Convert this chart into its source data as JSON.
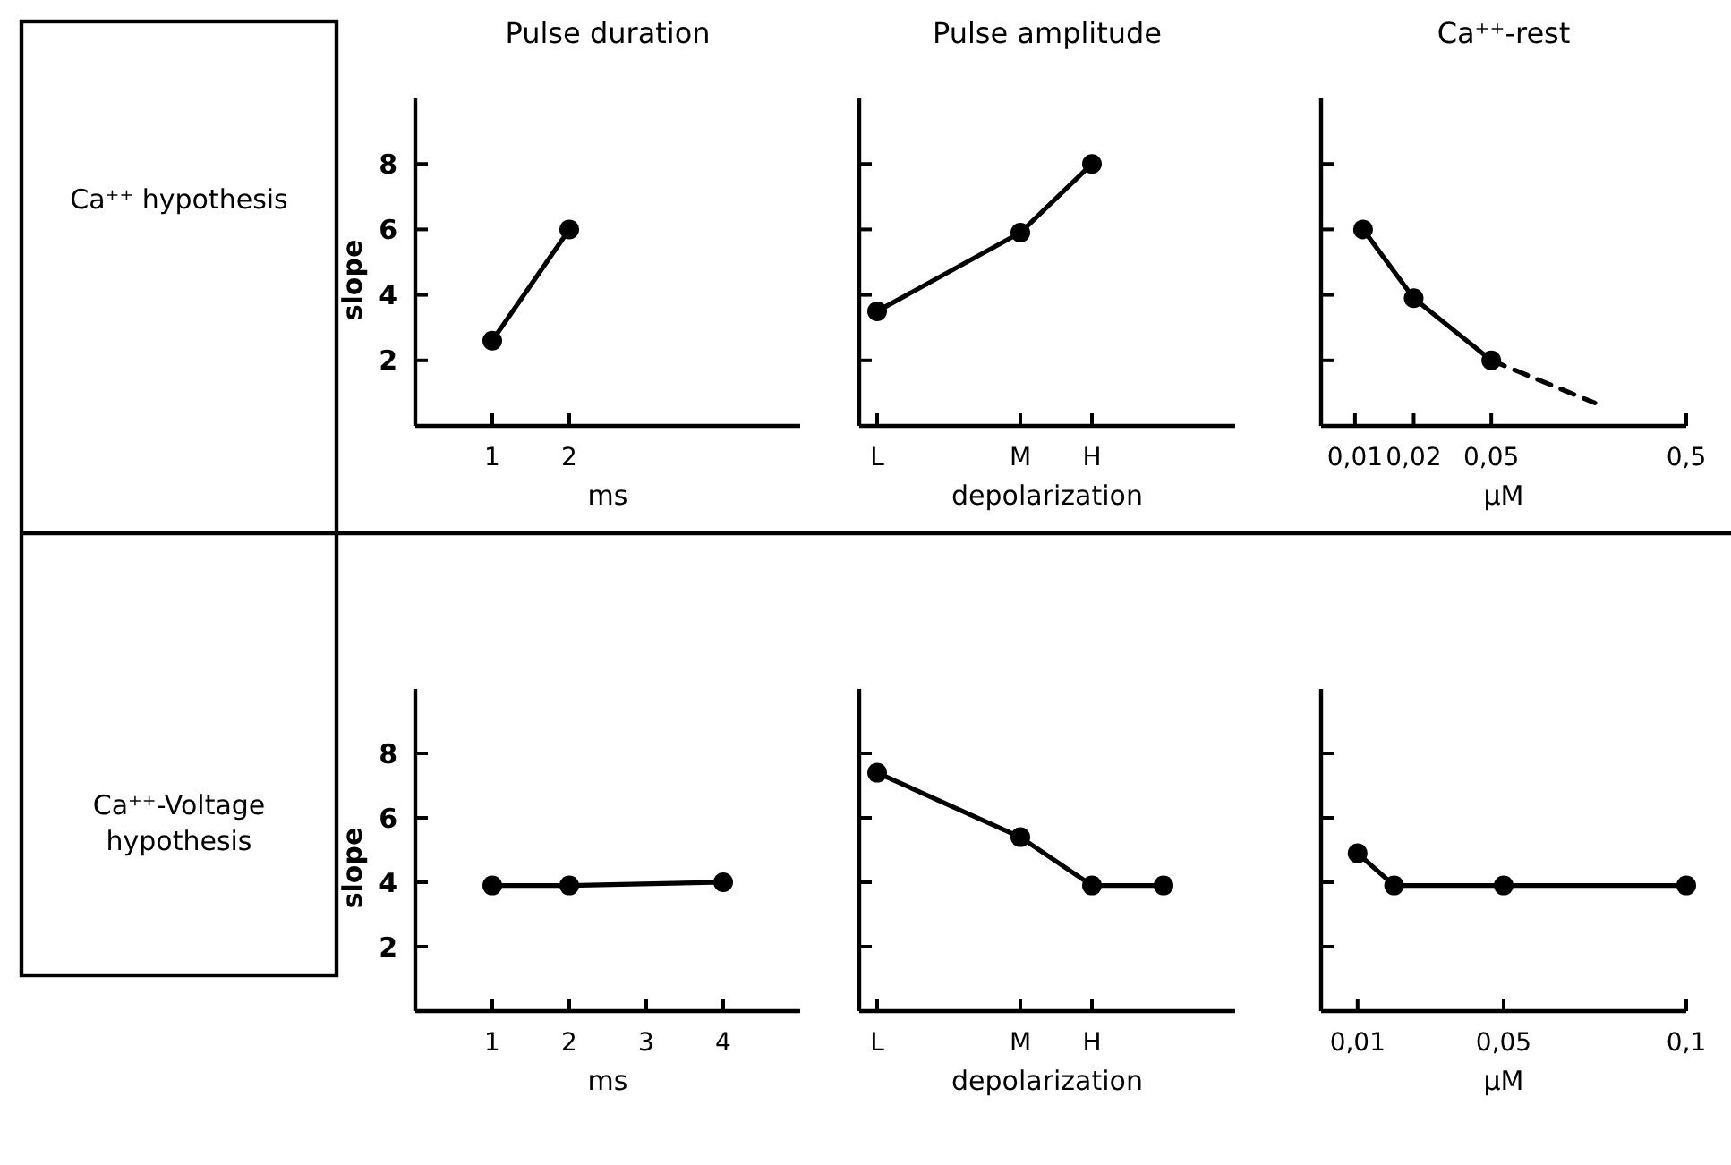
{
  "chart_data": [
    {
      "type": "line",
      "title": "Pulse duration",
      "xlabel": "ms",
      "ylabel": "slope",
      "annotations": [
        "Ca⁺⁺ hypothesis"
      ],
      "xlim": [
        0,
        5
      ],
      "xticks": [
        1,
        2
      ],
      "ylim": [
        0,
        10
      ],
      "yticks": [
        2,
        4,
        6,
        8
      ],
      "marker": "circle",
      "line_style": "solid",
      "x": [
        1,
        2
      ],
      "series": [
        {
          "color": "#000000",
          "values": [
            2.6,
            6.0
          ]
        }
      ]
    },
    {
      "type": "line",
      "title": "Pulse amplitude",
      "xlabel": "depolarization",
      "categories": [
        "L",
        null,
        "M",
        "H",
        null
      ],
      "ylim": [
        0,
        10
      ],
      "yticks": [
        2,
        4,
        6,
        8
      ],
      "tick_labels": "x",
      "marker": "circle",
      "line_style": "solid",
      "series": [
        {
          "color": "#000000",
          "values": [
            3.5,
            null,
            5.9,
            8.0,
            null
          ]
        }
      ]
    },
    {
      "type": "line",
      "title": "Ca⁺⁺-rest",
      "xlabel": "µM",
      "log": "x",
      "xlim": [
        0.0067,
        0.5
      ],
      "xticks": [
        {
          "value": 0.01,
          "label": "0,01"
        },
        {
          "value": 0.02,
          "label": "0,02"
        },
        {
          "value": 0.05,
          "label": "0,05"
        },
        {
          "value": 0.5,
          "label": "0,5"
        }
      ],
      "ylim": [
        0,
        10
      ],
      "yticks": [
        2,
        4,
        6,
        8
      ],
      "tick_labels": "x",
      "marker": "circle",
      "line_style": "solid",
      "series": [
        {
          "color": "#000000",
          "x": [
            0.011,
            0.02,
            0.05
          ],
          "values": [
            6.0,
            3.9,
            2.0
          ]
        },
        {
          "color": "#000000",
          "x": [
            0.05,
            0.17
          ],
          "values": [
            2.0,
            0.7
          ],
          "marker": "none",
          "line_style": "dashed"
        }
      ]
    },
    {
      "type": "line",
      "xlabel": "ms",
      "ylabel": "slope",
      "annotations": [
        "Ca⁺⁺-Voltage hypothesis"
      ],
      "xlim": [
        0,
        5
      ],
      "xticks": [
        1,
        2,
        3,
        4
      ],
      "ylim": [
        0,
        10
      ],
      "yticks": [
        2,
        4,
        6,
        8
      ],
      "marker": "circle",
      "line_style": "solid",
      "x": [
        1,
        2,
        4
      ],
      "series": [
        {
          "color": "#000000",
          "values": [
            3.9,
            3.9,
            4.0
          ]
        }
      ]
    },
    {
      "type": "line",
      "xlabel": "depolarization",
      "categories": [
        "L",
        null,
        "M",
        "H",
        null
      ],
      "ylim": [
        0,
        10
      ],
      "yticks": [
        2,
        4,
        6,
        8
      ],
      "tick_labels": "x",
      "marker": "circle",
      "line_style": "solid",
      "series": [
        {
          "color": "#000000",
          "values": [
            7.4,
            null,
            5.4,
            3.9,
            3.9
          ]
        }
      ]
    },
    {
      "type": "line",
      "xlabel": "µM",
      "xlim": [
        0,
        0.1
      ],
      "xticks": [
        {
          "value": 0.01,
          "label": "0,01"
        },
        {
          "value": 0.05,
          "label": "0,05"
        },
        {
          "value": 0.1,
          "label": "0,1"
        }
      ],
      "ylim": [
        0,
        10
      ],
      "yticks": [
        2,
        4,
        6,
        8
      ],
      "tick_labels": "x",
      "marker": "circle",
      "line_style": "solid",
      "series": [
        {
          "color": "#000000",
          "x": [
            0.01,
            0.02,
            0.05,
            0.1
          ],
          "values": [
            4.9,
            3.9,
            3.9,
            3.9
          ]
        }
      ]
    }
  ]
}
